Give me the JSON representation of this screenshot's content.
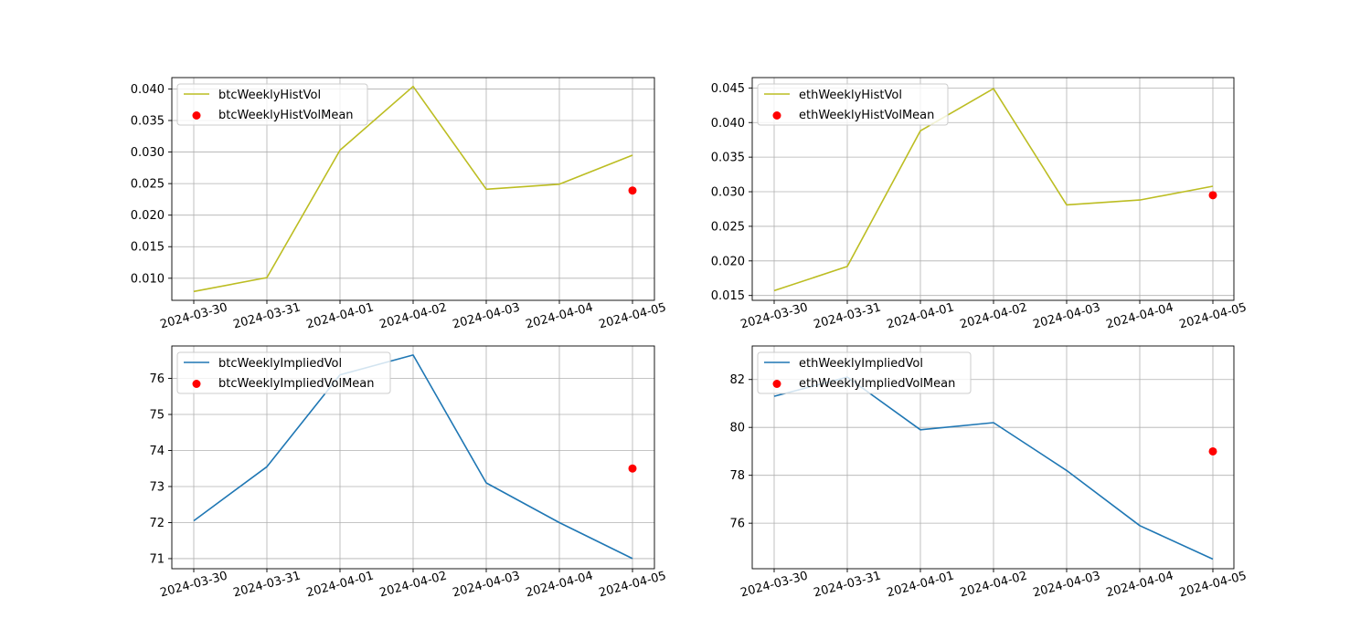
{
  "chart_data": [
    {
      "type": "line",
      "x": [
        "2024-03-30",
        "2024-03-31",
        "2024-04-01",
        "2024-04-02",
        "2024-04-03",
        "2024-04-04",
        "2024-04-05"
      ],
      "ylim": [
        0.0065,
        0.0418
      ],
      "yticks": [
        "0.010",
        "0.015",
        "0.020",
        "0.025",
        "0.030",
        "0.035",
        "0.040"
      ],
      "grid": true,
      "legend_position": "upper-left",
      "series": [
        {
          "name": "btcWeeklyHistVol",
          "kind": "line",
          "color": "#bcbd22",
          "values": [
            0.0079,
            0.0101,
            0.0303,
            0.0404,
            0.0241,
            0.0249,
            0.0295
          ]
        },
        {
          "name": "btcWeeklyHistVolMean",
          "kind": "scatter",
          "color": "#ff0000",
          "points": [
            {
              "x": "2024-04-05",
              "y": 0.0239
            }
          ]
        }
      ]
    },
    {
      "type": "line",
      "x": [
        "2024-03-30",
        "2024-03-31",
        "2024-04-01",
        "2024-04-02",
        "2024-04-03",
        "2024-04-04",
        "2024-04-05"
      ],
      "ylim": [
        0.0143,
        0.0465
      ],
      "yticks": [
        "0.015",
        "0.020",
        "0.025",
        "0.030",
        "0.035",
        "0.040",
        "0.045"
      ],
      "grid": true,
      "legend_position": "upper-left",
      "series": [
        {
          "name": "ethWeeklyHistVol",
          "kind": "line",
          "color": "#bcbd22",
          "values": [
            0.0157,
            0.0192,
            0.0388,
            0.0449,
            0.0281,
            0.0288,
            0.0308
          ]
        },
        {
          "name": "ethWeeklyHistVolMean",
          "kind": "scatter",
          "color": "#ff0000",
          "points": [
            {
              "x": "2024-04-05",
              "y": 0.0295
            }
          ]
        }
      ]
    },
    {
      "type": "line",
      "x": [
        "2024-03-30",
        "2024-03-31",
        "2024-04-01",
        "2024-04-02",
        "2024-04-03",
        "2024-04-04",
        "2024-04-05"
      ],
      "ylim": [
        70.72,
        76.9
      ],
      "yticks": [
        "71",
        "72",
        "73",
        "74",
        "75",
        "76"
      ],
      "grid": true,
      "legend_position": "upper-left",
      "series": [
        {
          "name": "btcWeeklyImpliedVol",
          "kind": "line",
          "color": "#1f77b4",
          "values": [
            72.05,
            73.55,
            76.1,
            76.65,
            73.1,
            72.0,
            71.0
          ]
        },
        {
          "name": "btcWeeklyImpliedVolMean",
          "kind": "scatter",
          "color": "#ff0000",
          "points": [
            {
              "x": "2024-04-05",
              "y": 73.5
            }
          ]
        }
      ]
    },
    {
      "type": "line",
      "x": [
        "2024-03-30",
        "2024-03-31",
        "2024-04-01",
        "2024-04-02",
        "2024-04-03",
        "2024-04-04",
        "2024-04-05"
      ],
      "ylim": [
        74.1,
        83.4
      ],
      "yticks": [
        "76",
        "78",
        "80",
        "82"
      ],
      "grid": true,
      "legend_position": "upper-left",
      "series": [
        {
          "name": "ethWeeklyImpliedVol",
          "kind": "line",
          "color": "#1f77b4",
          "values": [
            81.3,
            82.1,
            79.9,
            80.2,
            78.2,
            75.9,
            74.5
          ]
        },
        {
          "name": "ethWeeklyImpliedVolMean",
          "kind": "scatter",
          "color": "#ff0000",
          "points": [
            {
              "x": "2024-04-05",
              "y": 79.0
            }
          ]
        }
      ]
    }
  ]
}
